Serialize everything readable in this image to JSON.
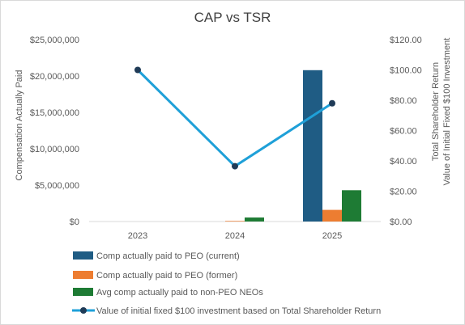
{
  "chart_data": {
    "type": "bar",
    "title": "CAP vs TSR",
    "categories": [
      "2023",
      "2024",
      "2025"
    ],
    "y_left": {
      "label": "Compensation Actually Paid",
      "range": [
        0,
        25000000
      ],
      "ticks": [
        0,
        5000000,
        10000000,
        15000000,
        20000000,
        25000000
      ],
      "tick_labels": [
        "$0",
        "$5,000,000",
        "$10,000,000",
        "$15,000,000",
        "$20,000,000",
        "$25,000,000"
      ]
    },
    "y_right": {
      "label_line1": "Total Shareholder Return",
      "label_line2": "Value of Initial Fixed $100 Investment",
      "range": [
        0,
        120
      ],
      "ticks": [
        0,
        20,
        40,
        60,
        80,
        100,
        120
      ],
      "tick_labels": [
        "$0.00",
        "$20.00",
        "$40.00",
        "$60.00",
        "$80.00",
        "$100.00",
        "$120.00"
      ]
    },
    "series": [
      {
        "name": "Comp actually paid to PEO (current)",
        "type": "bar",
        "axis": "left",
        "color": "#1f5c84",
        "values": [
          null,
          null,
          20800000
        ]
      },
      {
        "name": "Comp actually paid to PEO (former)",
        "type": "bar",
        "axis": "left",
        "color": "#ed7d31",
        "values": [
          null,
          80000,
          1600000
        ]
      },
      {
        "name": "Avg comp actually paid to non-PEO NEOs",
        "type": "bar",
        "axis": "left",
        "color": "#1e7b34",
        "values": [
          null,
          550000,
          4300000
        ]
      },
      {
        "name": "Value of initial fixed $100 investment based on Total Shareholder Return",
        "type": "line",
        "axis": "right",
        "color": "#1fa0d8",
        "marker_color": "#1f3b57",
        "values": [
          100,
          36.5,
          78
        ]
      }
    ],
    "grid": false,
    "legend_position": "bottom"
  }
}
